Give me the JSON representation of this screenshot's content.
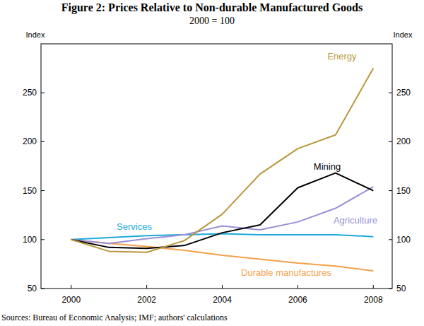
{
  "chart_data": {
    "type": "line",
    "title": "Figure 2: Prices Relative to Non-durable Manufactured Goods",
    "subtitle": "2000 = 100",
    "y_label": "Index",
    "y2_label": "Index",
    "source": "Sources: Bureau of Economic Analysis; IMF; authors' calculations",
    "x": [
      2000,
      2001,
      2002,
      2003,
      2004,
      2005,
      2006,
      2007,
      2008
    ],
    "xlim": [
      1999.2,
      2008.5
    ],
    "xticks": [
      2000,
      2002,
      2004,
      2006,
      2008
    ],
    "ylim": [
      50,
      300
    ],
    "yticks": [
      50,
      100,
      150,
      200,
      250
    ],
    "y2lim": [
      50,
      300
    ],
    "y2ticks": [
      50,
      100,
      150,
      200,
      250
    ],
    "grid": false,
    "series": [
      {
        "name": "Energy",
        "color": "#b8963c",
        "values": [
          100,
          88,
          87,
          99,
          126,
          167,
          193,
          207,
          275
        ]
      },
      {
        "name": "Mining",
        "color": "#000000",
        "values": [
          100,
          92,
          91,
          94,
          107,
          115,
          153,
          168,
          150
        ]
      },
      {
        "name": "Agriculture",
        "color": "#9a8fd4",
        "values": [
          100,
          96,
          101,
          105,
          114,
          110,
          118,
          132,
          154
        ]
      },
      {
        "name": "Services",
        "color": "#1ea9dc",
        "values": [
          100,
          102,
          104,
          105,
          106,
          105,
          105,
          105,
          103
        ]
      },
      {
        "name": "Durable manufactures",
        "color": "#f5a04a",
        "values": [
          100,
          96,
          93,
          89,
          84,
          80,
          76,
          73,
          68
        ]
      }
    ]
  }
}
